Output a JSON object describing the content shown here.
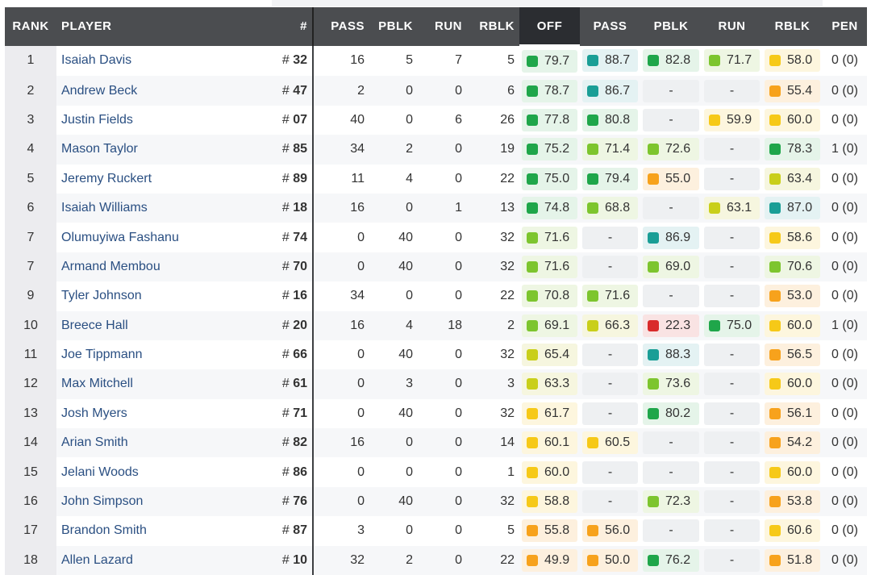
{
  "colors": {
    "teal": {
      "sq": "#1a9e96",
      "bg": "#e4f2f3"
    },
    "green": {
      "sq": "#1fa64a",
      "bg": "#e5f4e9"
    },
    "lgreen": {
      "sq": "#7dc52e",
      "bg": "#eef6e3"
    },
    "yg": {
      "sq": "#c9cf1a",
      "bg": "#f6f6df"
    },
    "yellow": {
      "sq": "#f6c918",
      "bg": "#fdf6de"
    },
    "orange": {
      "sq": "#f7a21c",
      "bg": "#fdf0de"
    },
    "red": {
      "sq": "#d92b2b",
      "bg": "#f9e3e3"
    }
  },
  "headers": {
    "rank": "RANK",
    "player": "PLAYER",
    "num": "#",
    "pass": "PASS",
    "pblk": "PBLK",
    "run": "RUN",
    "rblk": "RBLK",
    "off": "OFF",
    "g_pass": "PASS",
    "g_pblk": "PBLK",
    "g_run": "RUN",
    "g_rblk": "RBLK",
    "pen": "PEN"
  },
  "rows": [
    {
      "rank": "1",
      "player": "Isaiah Davis",
      "num": "32",
      "pass": "16",
      "pblk": "5",
      "run": "7",
      "rblk": "5",
      "off": [
        "79.7",
        "green"
      ],
      "g_pass": [
        "88.7",
        "teal"
      ],
      "g_pblk": [
        "82.8",
        "green"
      ],
      "g_run": [
        "71.7",
        "lgreen"
      ],
      "g_rblk": [
        "58.0",
        "yellow"
      ],
      "pen": "0 (0)"
    },
    {
      "rank": "2",
      "player": "Andrew Beck",
      "num": "47",
      "pass": "2",
      "pblk": "0",
      "run": "0",
      "rblk": "6",
      "off": [
        "78.7",
        "green"
      ],
      "g_pass": [
        "86.7",
        "teal"
      ],
      "g_pblk": [
        "-",
        ""
      ],
      "g_run": [
        "-",
        ""
      ],
      "g_rblk": [
        "55.4",
        "orange"
      ],
      "pen": "0 (0)"
    },
    {
      "rank": "3",
      "player": "Justin Fields",
      "num": "07",
      "pass": "40",
      "pblk": "0",
      "run": "6",
      "rblk": "26",
      "off": [
        "77.8",
        "green"
      ],
      "g_pass": [
        "80.8",
        "green"
      ],
      "g_pblk": [
        "-",
        ""
      ],
      "g_run": [
        "59.9",
        "yellow"
      ],
      "g_rblk": [
        "60.0",
        "yellow"
      ],
      "pen": "0 (0)"
    },
    {
      "rank": "4",
      "player": "Mason Taylor",
      "num": "85",
      "pass": "34",
      "pblk": "2",
      "run": "0",
      "rblk": "19",
      "off": [
        "75.2",
        "green"
      ],
      "g_pass": [
        "71.4",
        "lgreen"
      ],
      "g_pblk": [
        "72.6",
        "lgreen"
      ],
      "g_run": [
        "-",
        ""
      ],
      "g_rblk": [
        "78.3",
        "green"
      ],
      "pen": "1 (0)"
    },
    {
      "rank": "5",
      "player": "Jeremy Ruckert",
      "num": "89",
      "pass": "11",
      "pblk": "4",
      "run": "0",
      "rblk": "22",
      "off": [
        "75.0",
        "green"
      ],
      "g_pass": [
        "79.4",
        "green"
      ],
      "g_pblk": [
        "55.0",
        "orange"
      ],
      "g_run": [
        "-",
        ""
      ],
      "g_rblk": [
        "63.4",
        "yg"
      ],
      "pen": "0 (0)"
    },
    {
      "rank": "6",
      "player": "Isaiah Williams",
      "num": "18",
      "pass": "16",
      "pblk": "0",
      "run": "1",
      "rblk": "13",
      "off": [
        "74.8",
        "green"
      ],
      "g_pass": [
        "68.8",
        "lgreen"
      ],
      "g_pblk": [
        "-",
        ""
      ],
      "g_run": [
        "63.1",
        "yg"
      ],
      "g_rblk": [
        "87.0",
        "teal"
      ],
      "pen": "0 (0)"
    },
    {
      "rank": "7",
      "player": "Olumuyiwa Fashanu",
      "num": "74",
      "pass": "0",
      "pblk": "40",
      "run": "0",
      "rblk": "32",
      "off": [
        "71.6",
        "lgreen"
      ],
      "g_pass": [
        "-",
        ""
      ],
      "g_pblk": [
        "86.9",
        "teal"
      ],
      "g_run": [
        "-",
        ""
      ],
      "g_rblk": [
        "58.6",
        "yellow"
      ],
      "pen": "0 (0)"
    },
    {
      "rank": "7",
      "player": "Armand Membou",
      "num": "70",
      "pass": "0",
      "pblk": "40",
      "run": "0",
      "rblk": "32",
      "off": [
        "71.6",
        "lgreen"
      ],
      "g_pass": [
        "-",
        ""
      ],
      "g_pblk": [
        "69.0",
        "lgreen"
      ],
      "g_run": [
        "-",
        ""
      ],
      "g_rblk": [
        "70.6",
        "lgreen"
      ],
      "pen": "0 (0)"
    },
    {
      "rank": "9",
      "player": "Tyler Johnson",
      "num": "16",
      "pass": "34",
      "pblk": "0",
      "run": "0",
      "rblk": "22",
      "off": [
        "70.8",
        "lgreen"
      ],
      "g_pass": [
        "71.6",
        "lgreen"
      ],
      "g_pblk": [
        "-",
        ""
      ],
      "g_run": [
        "-",
        ""
      ],
      "g_rblk": [
        "53.0",
        "orange"
      ],
      "pen": "0 (0)"
    },
    {
      "rank": "10",
      "player": "Breece Hall",
      "num": "20",
      "pass": "16",
      "pblk": "4",
      "run": "18",
      "rblk": "2",
      "off": [
        "69.1",
        "lgreen"
      ],
      "g_pass": [
        "66.3",
        "yg"
      ],
      "g_pblk": [
        "22.3",
        "red"
      ],
      "g_run": [
        "75.0",
        "green"
      ],
      "g_rblk": [
        "60.0",
        "yellow"
      ],
      "pen": "1 (0)"
    },
    {
      "rank": "11",
      "player": "Joe Tippmann",
      "num": "66",
      "pass": "0",
      "pblk": "40",
      "run": "0",
      "rblk": "32",
      "off": [
        "65.4",
        "yg"
      ],
      "g_pass": [
        "-",
        ""
      ],
      "g_pblk": [
        "88.3",
        "teal"
      ],
      "g_run": [
        "-",
        ""
      ],
      "g_rblk": [
        "56.5",
        "orange"
      ],
      "pen": "0 (0)"
    },
    {
      "rank": "12",
      "player": "Max Mitchell",
      "num": "61",
      "pass": "0",
      "pblk": "3",
      "run": "0",
      "rblk": "3",
      "off": [
        "63.3",
        "yg"
      ],
      "g_pass": [
        "-",
        ""
      ],
      "g_pblk": [
        "73.6",
        "lgreen"
      ],
      "g_run": [
        "-",
        ""
      ],
      "g_rblk": [
        "60.0",
        "yellow"
      ],
      "pen": "0 (0)"
    },
    {
      "rank": "13",
      "player": "Josh Myers",
      "num": "71",
      "pass": "0",
      "pblk": "40",
      "run": "0",
      "rblk": "32",
      "off": [
        "61.7",
        "yellow"
      ],
      "g_pass": [
        "-",
        ""
      ],
      "g_pblk": [
        "80.2",
        "green"
      ],
      "g_run": [
        "-",
        ""
      ],
      "g_rblk": [
        "56.1",
        "orange"
      ],
      "pen": "0 (0)"
    },
    {
      "rank": "14",
      "player": "Arian Smith",
      "num": "82",
      "pass": "16",
      "pblk": "0",
      "run": "0",
      "rblk": "14",
      "off": [
        "60.1",
        "yellow"
      ],
      "g_pass": [
        "60.5",
        "yellow"
      ],
      "g_pblk": [
        "-",
        ""
      ],
      "g_run": [
        "-",
        ""
      ],
      "g_rblk": [
        "54.2",
        "orange"
      ],
      "pen": "0 (0)"
    },
    {
      "rank": "15",
      "player": "Jelani Woods",
      "num": "86",
      "pass": "0",
      "pblk": "0",
      "run": "0",
      "rblk": "1",
      "off": [
        "60.0",
        "yellow"
      ],
      "g_pass": [
        "-",
        ""
      ],
      "g_pblk": [
        "-",
        ""
      ],
      "g_run": [
        "-",
        ""
      ],
      "g_rblk": [
        "60.0",
        "yellow"
      ],
      "pen": "0 (0)"
    },
    {
      "rank": "16",
      "player": "John Simpson",
      "num": "76",
      "pass": "0",
      "pblk": "40",
      "run": "0",
      "rblk": "32",
      "off": [
        "58.8",
        "yellow"
      ],
      "g_pass": [
        "-",
        ""
      ],
      "g_pblk": [
        "72.3",
        "lgreen"
      ],
      "g_run": [
        "-",
        ""
      ],
      "g_rblk": [
        "53.8",
        "orange"
      ],
      "pen": "0 (0)"
    },
    {
      "rank": "17",
      "player": "Brandon Smith",
      "num": "87",
      "pass": "3",
      "pblk": "0",
      "run": "0",
      "rblk": "5",
      "off": [
        "55.8",
        "orange"
      ],
      "g_pass": [
        "56.0",
        "orange"
      ],
      "g_pblk": [
        "-",
        ""
      ],
      "g_run": [
        "-",
        ""
      ],
      "g_rblk": [
        "60.6",
        "yellow"
      ],
      "pen": "0 (0)"
    },
    {
      "rank": "18",
      "player": "Allen Lazard",
      "num": "10",
      "pass": "32",
      "pblk": "2",
      "run": "0",
      "rblk": "22",
      "off": [
        "49.9",
        "orange"
      ],
      "g_pass": [
        "50.0",
        "orange"
      ],
      "g_pblk": [
        "76.2",
        "green"
      ],
      "g_run": [
        "-",
        ""
      ],
      "g_rblk": [
        "51.8",
        "orange"
      ],
      "pen": "0 (0)"
    }
  ]
}
